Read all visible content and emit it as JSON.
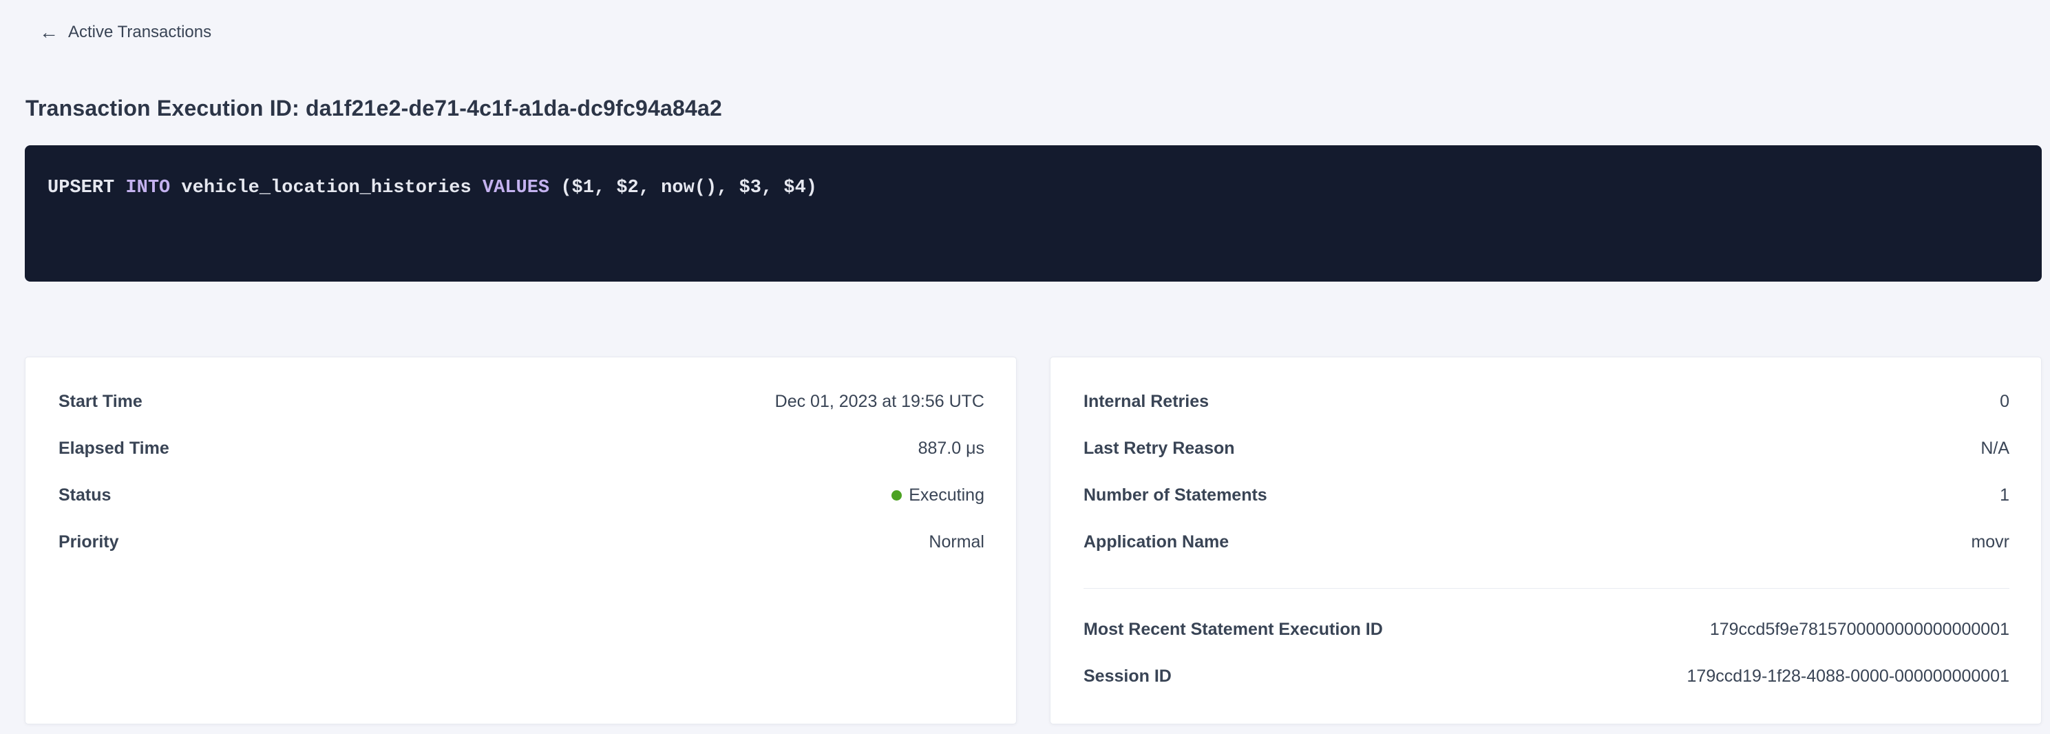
{
  "colors": {
    "page_bg": "#f4f5fa",
    "link_blue": "#2b5cec",
    "status_green": "#4ca223",
    "code_bg": "#141b2e",
    "code_keyword": "#c4b2ef",
    "code_text": "#e6e8f0"
  },
  "header": {
    "back_icon": "←",
    "back_label": "Active Transactions",
    "title": "Transaction Execution ID: da1f21e2-de71-4c1f-a1da-dc9fc94a84a2"
  },
  "sql": {
    "parts": {
      "p0": "UPSERT ",
      "p1": "INTO",
      "p2": " vehicle_location_histories ",
      "p3": "VALUES",
      "p4": " ($1, $2, now(), $3, $4)"
    },
    "full_statement": "UPSERT INTO vehicle_location_histories VALUES ($1, $2, now(), $3, $4)"
  },
  "left_card": {
    "rows": [
      {
        "label": "Start Time",
        "value": "Dec 01, 2023 at 19:56 UTC"
      },
      {
        "label": "Elapsed Time",
        "value": "887.0 μs"
      },
      {
        "label": "Status",
        "value": "Executing"
      },
      {
        "label": "Priority",
        "value": "Normal"
      }
    ]
  },
  "right_card": {
    "rows": [
      {
        "label": "Internal Retries",
        "value": "0"
      },
      {
        "label": "Last Retry Reason",
        "value": "N/A"
      },
      {
        "label": "Number of Statements",
        "value": "1"
      },
      {
        "label": "Application Name",
        "value": "movr"
      }
    ],
    "link_rows": [
      {
        "label": "Most Recent Statement Execution ID",
        "value": "179ccd5f9e7815700000000000000001"
      },
      {
        "label": "Session ID",
        "value": "179ccd19-1f28-4088-0000-000000000001"
      }
    ]
  }
}
